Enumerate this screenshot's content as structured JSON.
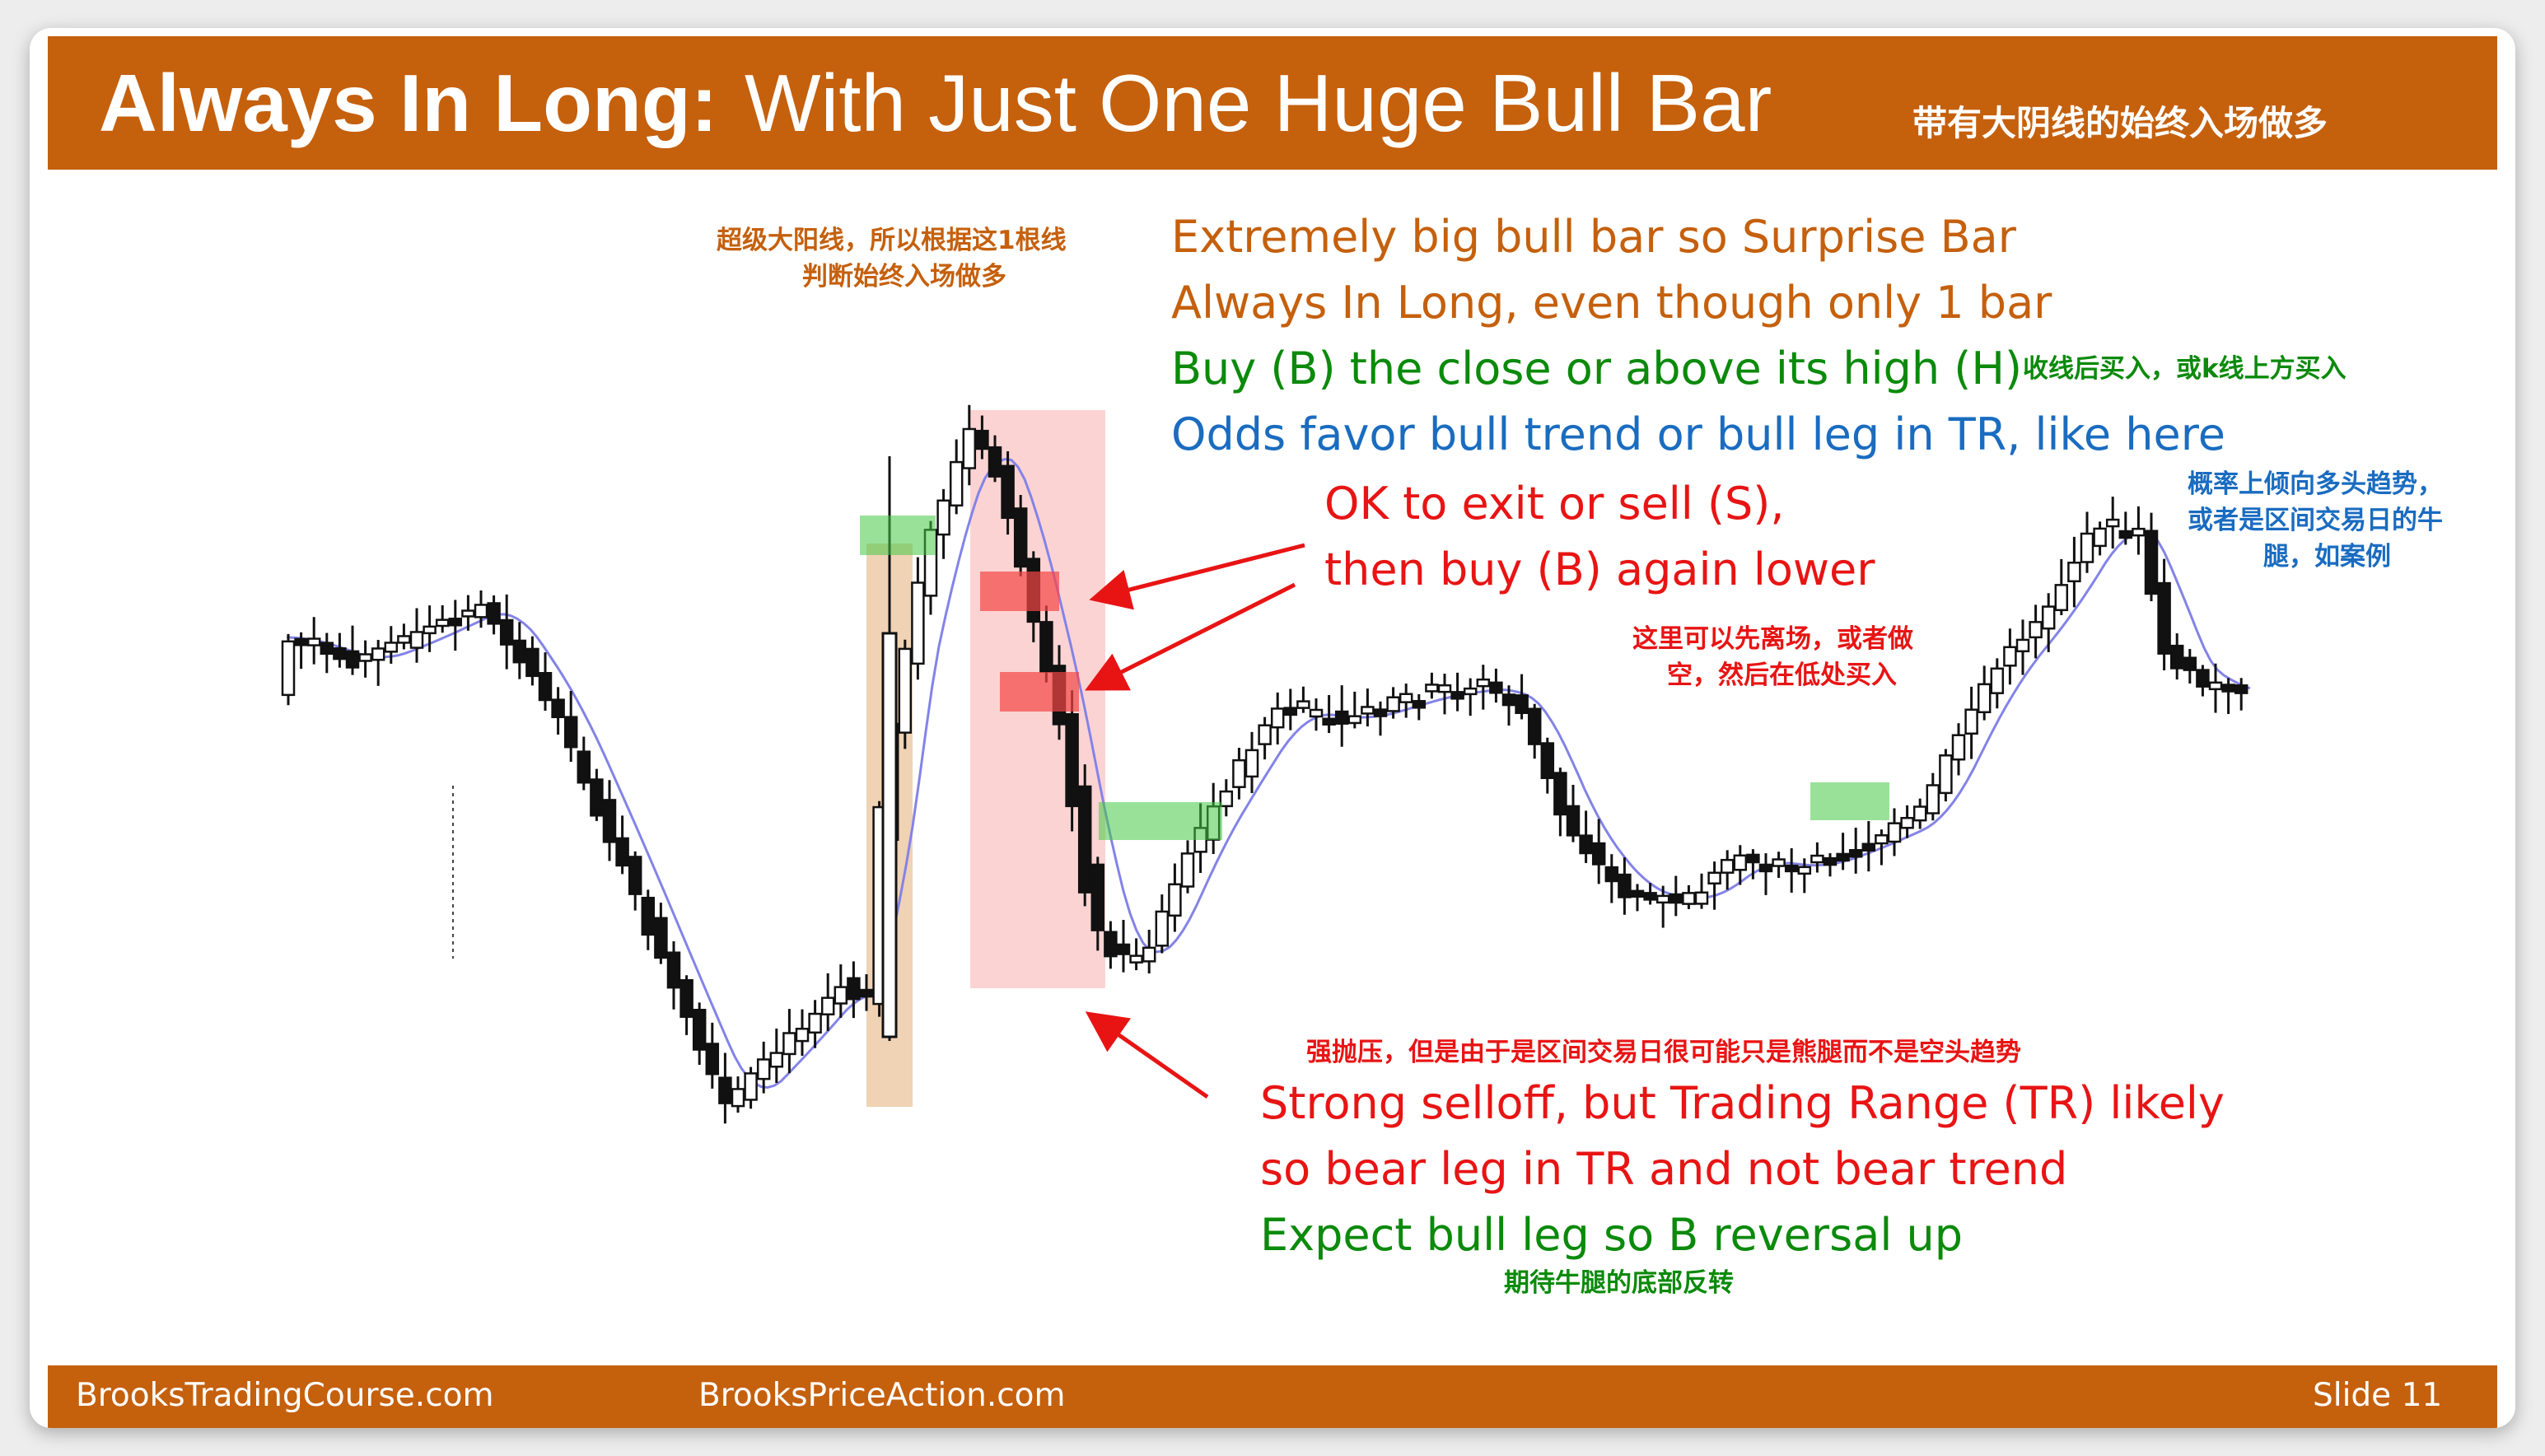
{
  "title": {
    "bold": "Always In Long:",
    "normal": "With Just One Huge Bull Bar",
    "chinese": "带有大阴线的始终入场做多"
  },
  "annotations": {
    "cn_surprise_1": "超级大阳线，所以根据这1根线",
    "cn_surprise_2": "判断始终入场做多",
    "line1": "Extremely big bull bar so Surprise Bar",
    "line2": "Always In Long, even though only 1 bar",
    "line3": "Buy (B) the close or above its high (H)",
    "cn_buy": "收线后买入，或k线上方买入",
    "line4": "Odds favor bull trend or bull leg in TR, like here",
    "exit1": "OK to exit or sell (S),",
    "exit2": "then buy (B) again lower",
    "cn_exit_1": "这里可以先离场，或者做",
    "cn_exit_2": "空，然后在低处买入",
    "cn_odds_1": "概率上倾向多头趋势，",
    "cn_odds_2": "或者是区间交易日的牛",
    "cn_odds_3": "腿，如案例",
    "cn_selloff": "强抛压，但是由于是区间交易日很可能只是熊腿而不是空头趋势",
    "selloff1": "Strong selloff, but Trading Range (TR) likely",
    "selloff2": "so bear leg in TR and not bear trend",
    "expect": "Expect bull leg so B reversal up",
    "cn_expect": "期待牛腿的底部反转"
  },
  "footer": {
    "left": "BrooksTradingCourse.com",
    "center": "BrooksPriceAction.com",
    "slide": "Slide  11"
  },
  "colors": {
    "orange": "#c5600d",
    "green": "#0b8a0b",
    "blue": "#1a6cc0",
    "red": "#e81414",
    "ema": "#8383e8"
  }
}
